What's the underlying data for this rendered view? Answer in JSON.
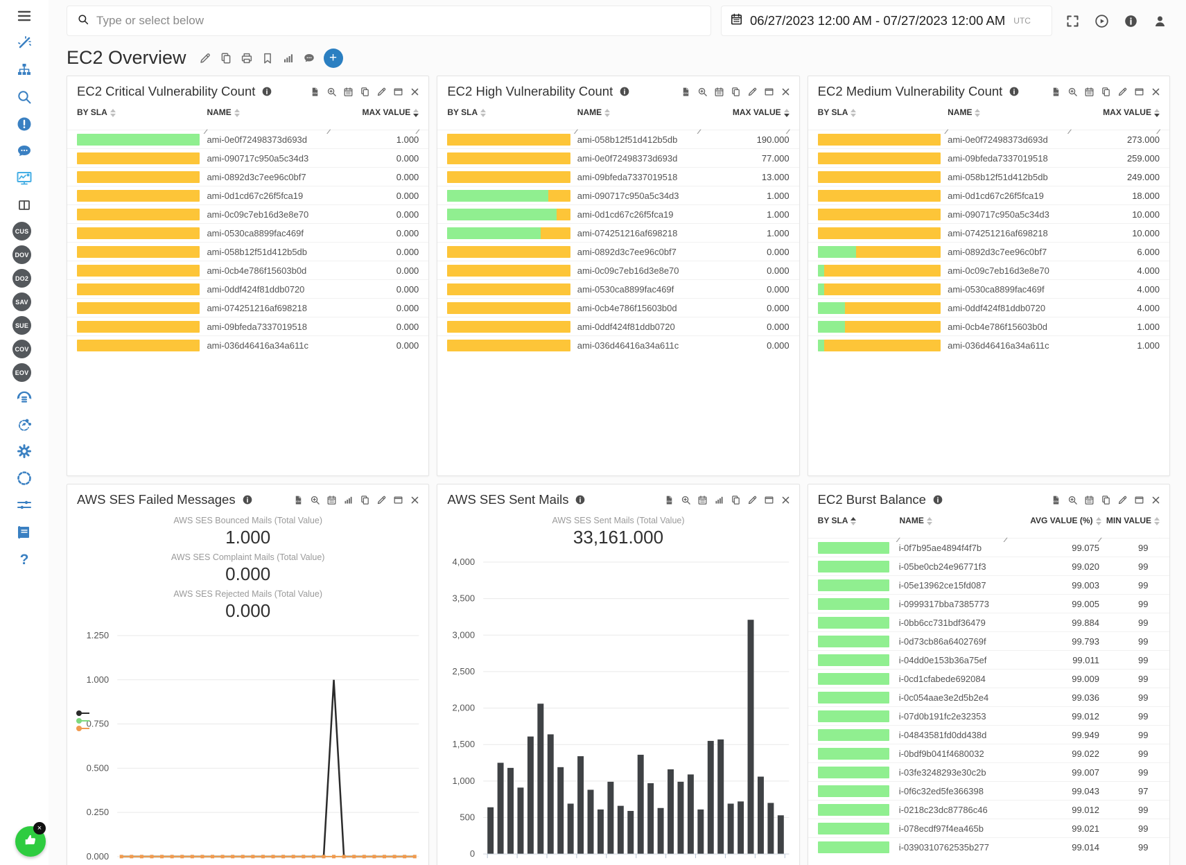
{
  "topbar": {
    "search_placeholder": "Type or select below",
    "date_range": "06/27/2023 12:00 AM - 07/27/2023 12:00 AM",
    "timezone": "UTC",
    "right_icons": [
      "fullscreen-icon",
      "play-circle-icon",
      "info-circle-icon",
      "user-icon"
    ]
  },
  "page": {
    "title": "EC2 Overview",
    "title_actions": [
      "edit-icon",
      "copy-icon",
      "print-icon",
      "bookmark-icon",
      "bar-chart-icon",
      "comment-icon"
    ],
    "add_label": "+"
  },
  "sidebar": {
    "items": [
      {
        "icon": "menu-icon",
        "tone": "dark"
      },
      {
        "icon": "wand-icon"
      },
      {
        "icon": "sitemap-icon"
      },
      {
        "icon": "search-icon"
      },
      {
        "icon": "alert-icon"
      },
      {
        "icon": "chat-icon"
      },
      {
        "icon": "monitor-chart-icon",
        "active": true
      },
      {
        "icon": "columns-icon",
        "tone": "dark"
      },
      {
        "badge": "CUS"
      },
      {
        "badge": "DOV"
      },
      {
        "badge": "DO2"
      },
      {
        "badge": "SAV"
      },
      {
        "badge": "SUE"
      },
      {
        "badge": "COV"
      },
      {
        "badge": "EOV"
      },
      {
        "icon": "headset-icon"
      },
      {
        "icon": "share-icon"
      },
      {
        "icon": "gear-icon"
      },
      {
        "icon": "dashed-circle-icon"
      },
      {
        "icon": "sliders-icon"
      },
      {
        "icon": "book-icon"
      },
      {
        "icon": "question-icon"
      }
    ],
    "fab": {
      "icon": "thumbs-up-icon",
      "close": "×"
    }
  },
  "colors": {
    "accent": "#3a80c2",
    "yellow": "#fdc538",
    "green": "#90ef90",
    "bar_dark": "#3f4245",
    "orange": "#f09a4f",
    "line_black": "#2b2b2b",
    "legend": [
      "#2b2b2b",
      "#7ed87e",
      "#f09a4f"
    ]
  },
  "panels": {
    "critical": {
      "title": "EC2 Critical Vulnerability Count",
      "actions": [
        "csv-icon",
        "zoom-plus-icon",
        "calendar-icon",
        "copy-icon",
        "edit-icon",
        "window-icon",
        "close-icon"
      ],
      "columns": [
        "BY SLA",
        "NAME",
        "MAX VALUE"
      ],
      "sorted_col": "MAX VALUE",
      "rows": [
        {
          "green": 100,
          "name": "ami-0e0f72498373d693d",
          "max": "1.000"
        },
        {
          "green": 0,
          "name": "ami-090717c950a5c34d3",
          "max": "0.000"
        },
        {
          "green": 0,
          "name": "ami-0892d3c7ee96c0bf7",
          "max": "0.000"
        },
        {
          "green": 0,
          "name": "ami-0d1cd67c26f5fca19",
          "max": "0.000"
        },
        {
          "green": 0,
          "name": "ami-0c09c7eb16d3e8e70",
          "max": "0.000"
        },
        {
          "green": 0,
          "name": "ami-0530ca8899fac469f",
          "max": "0.000"
        },
        {
          "green": 0,
          "name": "ami-058b12f51d412b5db",
          "max": "0.000"
        },
        {
          "green": 0,
          "name": "ami-0cb4e786f15603b0d",
          "max": "0.000"
        },
        {
          "green": 0,
          "name": "ami-0ddf424f81ddb0720",
          "max": "0.000"
        },
        {
          "green": 0,
          "name": "ami-074251216af698218",
          "max": "0.000"
        },
        {
          "green": 0,
          "name": "ami-09bfeda7337019518",
          "max": "0.000"
        },
        {
          "green": 0,
          "name": "ami-036d46416a34a611c",
          "max": "0.000"
        }
      ]
    },
    "high": {
      "title": "EC2 High Vulnerability Count",
      "actions": [
        "csv-icon",
        "zoom-plus-icon",
        "calendar-icon",
        "copy-icon",
        "edit-icon",
        "window-icon",
        "close-icon"
      ],
      "columns": [
        "BY SLA",
        "NAME",
        "MAX VALUE"
      ],
      "sorted_col": "MAX VALUE",
      "rows": [
        {
          "green": 0,
          "name": "ami-058b12f51d412b5db",
          "max": "190.000"
        },
        {
          "green": 0,
          "name": "ami-0e0f72498373d693d",
          "max": "77.000"
        },
        {
          "green": 0,
          "name": "ami-09bfeda7337019518",
          "max": "13.000"
        },
        {
          "green": 82,
          "name": "ami-090717c950a5c34d3",
          "max": "1.000"
        },
        {
          "green": 89,
          "name": "ami-0d1cd67c26f5fca19",
          "max": "1.000"
        },
        {
          "green": 76,
          "name": "ami-074251216af698218",
          "max": "1.000"
        },
        {
          "green": 0,
          "name": "ami-0892d3c7ee96c0bf7",
          "max": "0.000"
        },
        {
          "green": 0,
          "name": "ami-0c09c7eb16d3e8e70",
          "max": "0.000"
        },
        {
          "green": 0,
          "name": "ami-0530ca8899fac469f",
          "max": "0.000"
        },
        {
          "green": 0,
          "name": "ami-0cb4e786f15603b0d",
          "max": "0.000"
        },
        {
          "green": 0,
          "name": "ami-0ddf424f81ddb0720",
          "max": "0.000"
        },
        {
          "green": 0,
          "name": "ami-036d46416a34a611c",
          "max": "0.000"
        }
      ]
    },
    "medium": {
      "title": "EC2 Medium Vulnerability Count",
      "actions": [
        "csv-icon",
        "zoom-plus-icon",
        "calendar-icon",
        "copy-icon",
        "edit-icon",
        "window-icon",
        "close-icon"
      ],
      "columns": [
        "BY SLA",
        "NAME",
        "MAX VALUE"
      ],
      "sorted_col": "MAX VALUE",
      "rows": [
        {
          "green": 0,
          "name": "ami-0e0f72498373d693d",
          "max": "273.000"
        },
        {
          "green": 0,
          "name": "ami-09bfeda7337019518",
          "max": "259.000"
        },
        {
          "green": 0,
          "name": "ami-058b12f51d412b5db",
          "max": "249.000"
        },
        {
          "green": 0,
          "name": "ami-0d1cd67c26f5fca19",
          "max": "18.000"
        },
        {
          "green": 0,
          "name": "ami-090717c950a5c34d3",
          "max": "10.000"
        },
        {
          "green": 0,
          "name": "ami-074251216af698218",
          "max": "10.000"
        },
        {
          "green": 31,
          "name": "ami-0892d3c7ee96c0bf7",
          "max": "6.000"
        },
        {
          "green": 5,
          "name": "ami-0c09c7eb16d3e8e70",
          "max": "4.000"
        },
        {
          "green": 5,
          "name": "ami-0530ca8899fac469f",
          "max": "4.000"
        },
        {
          "green": 22,
          "name": "ami-0ddf424f81ddb0720",
          "max": "4.000"
        },
        {
          "green": 22,
          "name": "ami-0cb4e786f15603b0d",
          "max": "1.000"
        },
        {
          "green": 5,
          "name": "ami-036d46416a34a611c",
          "max": "1.000"
        }
      ]
    },
    "failed": {
      "title": "AWS SES Failed Messages",
      "actions": [
        "csv-icon",
        "zoom-plus-icon",
        "calendar-icon",
        "bar-chart-icon",
        "copy-icon",
        "edit-icon",
        "window-icon",
        "close-icon"
      ],
      "totals": [
        {
          "label": "AWS SES Bounced Mails (Total Value)",
          "value": "1.000"
        },
        {
          "label": "AWS SES Complaint Mails (Total Value)",
          "value": "0.000"
        },
        {
          "label": "AWS SES Rejected Mails (Total Value)",
          "value": "0.000"
        }
      ],
      "chart_data": {
        "type": "line",
        "yticks": [
          "1.250",
          "1.000",
          "0.750",
          "0.500",
          "0.250",
          "0.000"
        ],
        "ylim": [
          0,
          1.25
        ],
        "points": 30,
        "series": [
          {
            "name": "bounced",
            "color": "#2b2b2b",
            "values": [
              0,
              0,
              0,
              0,
              0,
              0,
              0,
              0,
              0,
              0,
              0,
              0,
              0,
              0,
              0,
              0,
              0,
              0,
              0,
              0,
              0,
              1,
              0,
              0,
              0,
              0,
              0,
              0,
              0,
              0
            ]
          },
          {
            "name": "complaint",
            "color": "#7ed87e",
            "values": [
              0,
              0,
              0,
              0,
              0,
              0,
              0,
              0,
              0,
              0,
              0,
              0,
              0,
              0,
              0,
              0,
              0,
              0,
              0,
              0,
              0,
              0,
              0,
              0,
              0,
              0,
              0,
              0,
              0,
              0
            ]
          },
          {
            "name": "rejected",
            "color": "#f09a4f",
            "values": [
              0,
              0,
              0,
              0,
              0,
              0,
              0,
              0,
              0,
              0,
              0,
              0,
              0,
              0,
              0,
              0,
              0,
              0,
              0,
              0,
              0,
              0,
              0,
              0,
              0,
              0,
              0,
              0,
              0,
              0
            ]
          }
        ]
      }
    },
    "sent": {
      "title": "AWS SES Sent Mails",
      "actions": [
        "csv-icon",
        "zoom-plus-icon",
        "calendar-icon",
        "bar-chart-icon",
        "copy-icon",
        "edit-icon",
        "window-icon",
        "close-icon"
      ],
      "total_label": "AWS SES Sent Mails (Total Value)",
      "total_value": "33,161.000",
      "chart_data": {
        "type": "bar",
        "yticks": [
          "4,000",
          "3,500",
          "3,000",
          "2,500",
          "2,000",
          "1,500",
          "1,000",
          "500",
          "0"
        ],
        "ylim": [
          0,
          4000
        ],
        "values": [
          640,
          1250,
          1180,
          910,
          1610,
          2060,
          1640,
          1190,
          690,
          1340,
          880,
          610,
          990,
          660,
          590,
          1360,
          970,
          630,
          1160,
          990,
          1090,
          610,
          1550,
          1570,
          690,
          720,
          3210,
          1060,
          700,
          530
        ]
      }
    },
    "burst": {
      "title": "EC2 Burst Balance",
      "actions": [
        "csv-icon",
        "zoom-plus-icon",
        "calendar-icon",
        "copy-icon",
        "edit-icon",
        "window-icon",
        "close-icon"
      ],
      "columns": [
        "BY SLA",
        "NAME",
        "AVG VALUE (%)",
        "MIN VALUE"
      ],
      "sorted_col": "BY SLA",
      "rows": [
        {
          "name": "i-0f7b95ae4894f4f7b",
          "avg": "99.075",
          "min": "99"
        },
        {
          "name": "i-05be0cb24e96771f3",
          "avg": "99.020",
          "min": "99"
        },
        {
          "name": "i-05e13962ce15fd087",
          "avg": "99.003",
          "min": "99"
        },
        {
          "name": "i-0999317bba7385773",
          "avg": "99.005",
          "min": "99"
        },
        {
          "name": "i-0bb6cc731bdf36479",
          "avg": "99.884",
          "min": "99"
        },
        {
          "name": "i-0d73cb86a6402769f",
          "avg": "99.793",
          "min": "99"
        },
        {
          "name": "i-04dd0e153b36a75ef",
          "avg": "99.011",
          "min": "99"
        },
        {
          "name": "i-0cd1cfabede692084",
          "avg": "99.009",
          "min": "99"
        },
        {
          "name": "i-0c054aae3e2d5b2e4",
          "avg": "99.036",
          "min": "99"
        },
        {
          "name": "i-07d0b191fc2e32353",
          "avg": "99.012",
          "min": "99"
        },
        {
          "name": "i-04843581fd0dd438d",
          "avg": "99.949",
          "min": "99"
        },
        {
          "name": "i-0bdf9b041f4680032",
          "avg": "99.022",
          "min": "99"
        },
        {
          "name": "i-03fe3248293e30c2b",
          "avg": "99.007",
          "min": "99"
        },
        {
          "name": "i-0f6c32ed5fe366398",
          "avg": "99.043",
          "min": "97"
        },
        {
          "name": "i-0218c23dc87786c46",
          "avg": "99.012",
          "min": "99"
        },
        {
          "name": "i-078ecdf97f4ea465b",
          "avg": "99.021",
          "min": "99"
        },
        {
          "name": "i-0390310762535b277",
          "avg": "99.014",
          "min": "99"
        }
      ]
    }
  }
}
